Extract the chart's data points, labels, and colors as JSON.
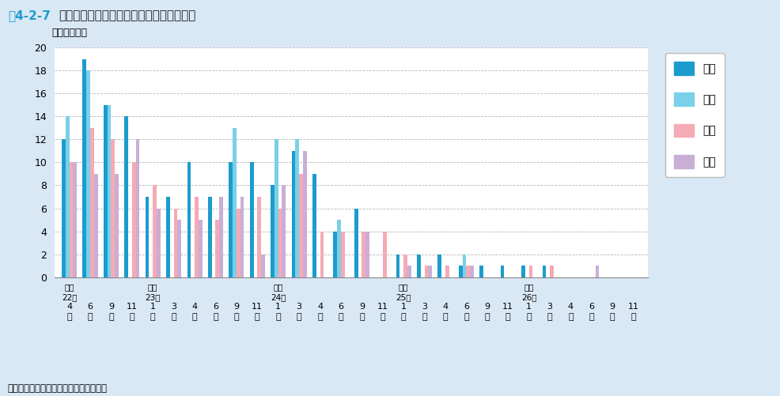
{
  "title_prefix": "図4-2-7",
  "title_main": "高辺台小学校における給食残食量の変化",
  "ylabel": "（湿重量％）",
  "ylim": [
    0,
    20
  ],
  "yticks": [
    0,
    2,
    4,
    6,
    8,
    10,
    12,
    14,
    16,
    18,
    20
  ],
  "source": "資料：高辺台小学校提供データより作成",
  "background_color": "#d9e8f5",
  "plot_background": "#ffffff",
  "series_labels": [
    "副食",
    "米飯",
    "パン",
    "牛乳"
  ],
  "series_colors": [
    "#1b9ccd",
    "#79d0e8",
    "#f5aab5",
    "#c9aed6"
  ],
  "n_groups": 28,
  "x_month_labels": [
    "4",
    "6",
    "9",
    "11",
    "1",
    "3",
    "4",
    "6",
    "9",
    "11",
    "1",
    "3",
    "4",
    "6",
    "9",
    "11",
    "1",
    "3",
    "4",
    "6",
    "9",
    "11",
    "1",
    "3",
    "4",
    "6",
    "9",
    "11"
  ],
  "x_year_labels": {
    "0": "平成22年",
    "4": "平成23年",
    "10": "平成24年",
    "16": "平成25年",
    "22": "平成26年"
  },
  "data": {
    "副食": [
      12,
      19,
      15,
      14,
      7,
      7,
      10,
      7,
      10,
      10,
      8,
      11,
      9,
      4,
      6,
      null,
      2,
      2,
      2,
      1,
      1,
      1,
      1,
      1,
      null,
      null,
      null,
      null
    ],
    "米飯": [
      14,
      18,
      15,
      null,
      null,
      null,
      null,
      null,
      13,
      null,
      12,
      12,
      null,
      5,
      null,
      null,
      null,
      null,
      null,
      2,
      null,
      null,
      null,
      null,
      null,
      null,
      null,
      null
    ],
    "パン": [
      10,
      13,
      12,
      10,
      8,
      6,
      7,
      5,
      6,
      7,
      6,
      9,
      4,
      4,
      4,
      4,
      2,
      1,
      1,
      1,
      null,
      null,
      1,
      1,
      null,
      null,
      null,
      null
    ],
    "牛乳": [
      10,
      9,
      9,
      12,
      6,
      5,
      5,
      7,
      7,
      2,
      8,
      11,
      null,
      null,
      4,
      null,
      1,
      1,
      null,
      1,
      null,
      null,
      null,
      null,
      null,
      1,
      null,
      null
    ]
  },
  "title_color": "#222222",
  "title_prefix_color": "#1b9ccd",
  "grid_color": "#999999",
  "bar_width": 0.18
}
